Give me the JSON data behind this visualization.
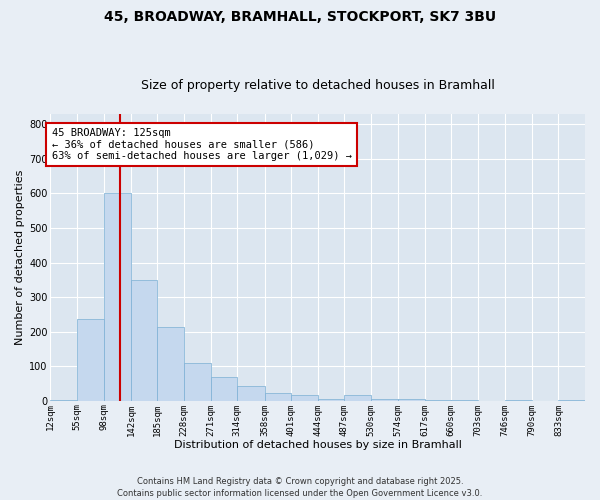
{
  "title_line1": "45, BROADWAY, BRAMHALL, STOCKPORT, SK7 3BU",
  "title_line2": "Size of property relative to detached houses in Bramhall",
  "xlabel": "Distribution of detached houses by size in Bramhall",
  "ylabel": "Number of detached properties",
  "bar_color": "#c5d8ee",
  "bar_edge_color": "#7aafd4",
  "bins": [
    12,
    55,
    98,
    142,
    185,
    228,
    271,
    314,
    358,
    401,
    444,
    487,
    530,
    574,
    617,
    660,
    703,
    746,
    790,
    833,
    876
  ],
  "bar_heights": [
    2,
    238,
    600,
    350,
    215,
    110,
    68,
    42,
    22,
    18,
    5,
    18,
    5,
    5,
    2,
    2,
    0,
    2,
    0,
    2
  ],
  "vline_x": 125,
  "vline_color": "#cc0000",
  "annotation_text": "45 BROADWAY: 125sqm\n← 36% of detached houses are smaller (586)\n63% of semi-detached houses are larger (1,029) →",
  "annotation_box_color": "#ffffff",
  "annotation_box_edge_color": "#cc0000",
  "ylim": [
    0,
    830
  ],
  "yticks": [
    0,
    100,
    200,
    300,
    400,
    500,
    600,
    700,
    800
  ],
  "background_color": "#e8eef5",
  "axes_background_color": "#dce6f0",
  "grid_color": "#ffffff",
  "footer_text": "Contains HM Land Registry data © Crown copyright and database right 2025.\nContains public sector information licensed under the Open Government Licence v3.0.",
  "title_fontsize": 10,
  "subtitle_fontsize": 9,
  "xlabel_fontsize": 8,
  "ylabel_fontsize": 8,
  "tick_fontsize": 6.5,
  "annotation_fontsize": 7.5,
  "footer_fontsize": 6
}
